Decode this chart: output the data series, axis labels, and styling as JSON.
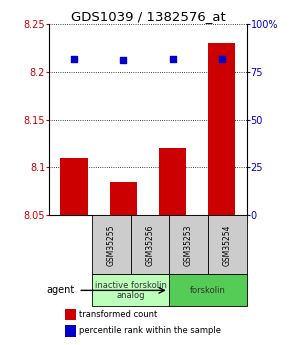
{
  "title": "GDS1039 / 1382576_at",
  "samples": [
    "GSM35255",
    "GSM35256",
    "GSM35253",
    "GSM35254"
  ],
  "bar_values": [
    8.11,
    8.085,
    8.12,
    8.23
  ],
  "bar_bottom": 8.05,
  "bar_color": "#cc0000",
  "dot_values": [
    82,
    81,
    82,
    82
  ],
  "dot_color": "#0000cc",
  "ylim_left": [
    8.05,
    8.25
  ],
  "yticks_left": [
    8.05,
    8.1,
    8.15,
    8.2,
    8.25
  ],
  "ylim_right": [
    0,
    100
  ],
  "yticks_right": [
    0,
    25,
    50,
    75,
    100
  ],
  "ytick_labels_right": [
    "0",
    "25",
    "50",
    "75",
    "100%"
  ],
  "groups": [
    {
      "label": "inactive forskolin\nanalog",
      "color": "#bbffbb",
      "samples": [
        0,
        1
      ]
    },
    {
      "label": "forskolin",
      "color": "#55cc55",
      "samples": [
        2,
        3
      ]
    }
  ],
  "agent_label": "agent",
  "legend_items": [
    {
      "color": "#cc0000",
      "label": "transformed count"
    },
    {
      "color": "#0000cc",
      "label": "percentile rank within the sample"
    }
  ],
  "background_color": "#ffffff",
  "sample_box_color": "#cccccc",
  "title_fontsize": 9.5,
  "tick_fontsize": 7,
  "bar_width": 0.55
}
